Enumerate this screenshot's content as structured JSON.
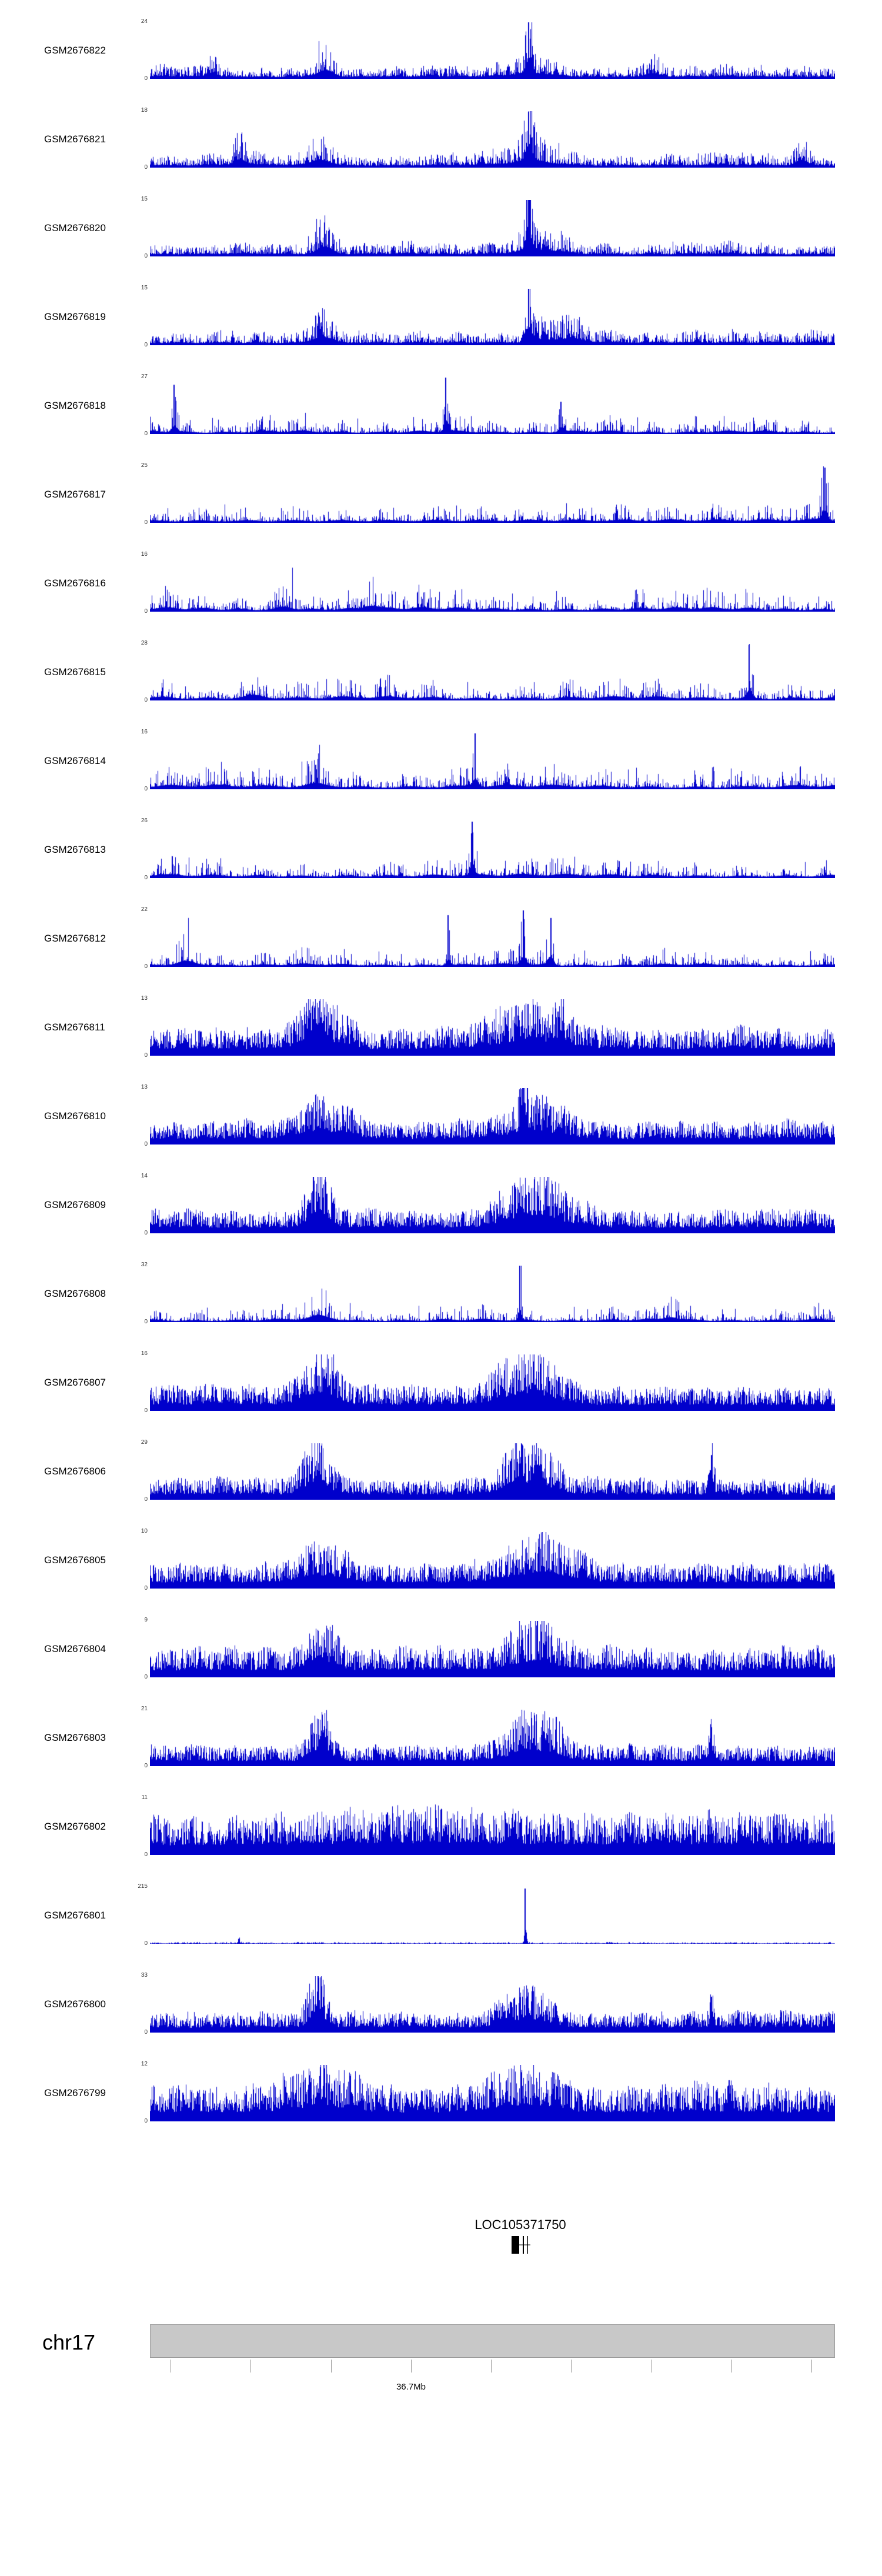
{
  "page": {
    "background": "#ffffff"
  },
  "chart_data": {
    "type": "area",
    "description": "Genome browser read-coverage tracks for 24 GEO samples over a region of chr17",
    "signal_color": "#0000cc",
    "y_bottom_label": "0",
    "x_axis": {
      "visible_tick_label": "36.7Mb"
    },
    "tracks": [
      {
        "label": "GSM2676822",
        "ymax": "24",
        "seed": 1,
        "style": "medium",
        "base": 0.18,
        "peaks": [
          {
            "p": 0.09,
            "w": 0.006,
            "h": 0.35
          },
          {
            "p": 0.255,
            "w": 0.012,
            "h": 0.5
          },
          {
            "p": 0.553,
            "w": 0.004,
            "h": 0.95
          },
          {
            "p": 0.56,
            "w": 0.03,
            "h": 0.3
          },
          {
            "p": 0.73,
            "w": 0.01,
            "h": 0.25
          }
        ]
      },
      {
        "label": "GSM2676821",
        "ymax": "18",
        "seed": 2,
        "style": "medium",
        "base": 0.2,
        "peaks": [
          {
            "p": 0.13,
            "w": 0.008,
            "h": 0.4
          },
          {
            "p": 0.25,
            "w": 0.012,
            "h": 0.5
          },
          {
            "p": 0.553,
            "w": 0.004,
            "h": 0.93
          },
          {
            "p": 0.56,
            "w": 0.03,
            "h": 0.32
          },
          {
            "p": 0.95,
            "w": 0.008,
            "h": 0.35
          }
        ]
      },
      {
        "label": "GSM2676820",
        "ymax": "15",
        "seed": 3,
        "style": "medium",
        "base": 0.2,
        "peaks": [
          {
            "p": 0.255,
            "w": 0.012,
            "h": 0.55
          },
          {
            "p": 0.553,
            "w": 0.004,
            "h": 0.95
          },
          {
            "p": 0.56,
            "w": 0.03,
            "h": 0.3
          }
        ]
      },
      {
        "label": "GSM2676819",
        "ymax": "15",
        "seed": 4,
        "style": "medium",
        "base": 0.2,
        "peaks": [
          {
            "p": 0.25,
            "w": 0.012,
            "h": 0.5
          },
          {
            "p": 0.553,
            "w": 0.004,
            "h": 0.95
          },
          {
            "p": 0.6,
            "w": 0.03,
            "h": 0.3
          }
        ]
      },
      {
        "label": "GSM2676818",
        "ymax": "27",
        "seed": 5,
        "style": "sparse",
        "base": 0.24,
        "peaks": [
          {
            "p": 0.035,
            "w": 0.004,
            "h": 0.8
          },
          {
            "p": 0.432,
            "w": 0.003,
            "h": 0.95
          },
          {
            "p": 0.6,
            "w": 0.004,
            "h": 0.5
          }
        ]
      },
      {
        "label": "GSM2676817",
        "ymax": "25",
        "seed": 6,
        "style": "sparse",
        "base": 0.26,
        "peaks": [
          {
            "p": 0.985,
            "w": 0.004,
            "h": 0.9
          }
        ]
      },
      {
        "label": "GSM2676816",
        "ymax": "16",
        "seed": 7,
        "style": "sparse",
        "base": 0.3,
        "peaks": [
          {
            "p": 0.2,
            "w": 0.01,
            "h": 0.45
          },
          {
            "p": 0.32,
            "w": 0.008,
            "h": 0.45
          }
        ]
      },
      {
        "label": "GSM2676815",
        "ymax": "28",
        "seed": 8,
        "style": "sparse",
        "base": 0.28,
        "peaks": [
          {
            "p": 0.15,
            "w": 0.02,
            "h": 0.35
          },
          {
            "p": 0.875,
            "w": 0.004,
            "h": 0.9
          }
        ]
      },
      {
        "label": "GSM2676814",
        "ymax": "16",
        "seed": 9,
        "style": "sparse",
        "base": 0.3,
        "peaks": [
          {
            "p": 0.25,
            "w": 0.02,
            "h": 0.35
          },
          {
            "p": 0.475,
            "w": 0.004,
            "h": 0.9
          }
        ]
      },
      {
        "label": "GSM2676813",
        "ymax": "26",
        "seed": 10,
        "style": "sparse",
        "base": 0.28,
        "peaks": [
          {
            "p": 0.47,
            "w": 0.003,
            "h": 0.95
          }
        ]
      },
      {
        "label": "GSM2676812",
        "ymax": "22",
        "seed": 11,
        "style": "sparse",
        "base": 0.22,
        "peaks": [
          {
            "p": 0.06,
            "w": 0.015,
            "h": 0.45
          },
          {
            "p": 0.435,
            "w": 0.003,
            "h": 0.85
          },
          {
            "p": 0.545,
            "w": 0.004,
            "h": 0.95
          },
          {
            "p": 0.585,
            "w": 0.004,
            "h": 0.8
          }
        ]
      },
      {
        "label": "GSM2676811",
        "ymax": "13",
        "seed": 12,
        "style": "dense",
        "base": 0.38,
        "peaks": [
          {
            "p": 0.25,
            "w": 0.03,
            "h": 0.45
          },
          {
            "p": 0.55,
            "w": 0.04,
            "h": 0.5
          },
          {
            "p": 0.6,
            "w": 0.01,
            "h": 0.3
          }
        ]
      },
      {
        "label": "GSM2676810",
        "ymax": "13",
        "seed": 13,
        "style": "dense",
        "base": 0.32,
        "peaks": [
          {
            "p": 0.25,
            "w": 0.03,
            "h": 0.4
          },
          {
            "p": 0.545,
            "w": 0.004,
            "h": 0.95
          },
          {
            "p": 0.56,
            "w": 0.035,
            "h": 0.45
          }
        ]
      },
      {
        "label": "GSM2676809",
        "ymax": "14",
        "seed": 14,
        "style": "dense",
        "base": 0.32,
        "peaks": [
          {
            "p": 0.245,
            "w": 0.015,
            "h": 0.75
          },
          {
            "p": 0.56,
            "w": 0.04,
            "h": 0.6
          }
        ]
      },
      {
        "label": "GSM2676808",
        "ymax": "32",
        "seed": 15,
        "style": "sparse",
        "base": 0.22,
        "peaks": [
          {
            "p": 0.25,
            "w": 0.02,
            "h": 0.3
          },
          {
            "p": 0.54,
            "w": 0.002,
            "h": 0.98
          },
          {
            "p": 0.76,
            "w": 0.008,
            "h": 0.35
          }
        ]
      },
      {
        "label": "GSM2676807",
        "ymax": "16",
        "seed": 16,
        "style": "dense",
        "base": 0.34,
        "peaks": [
          {
            "p": 0.25,
            "w": 0.02,
            "h": 0.55
          },
          {
            "p": 0.55,
            "w": 0.035,
            "h": 0.6
          }
        ]
      },
      {
        "label": "GSM2676806",
        "ymax": "29",
        "seed": 17,
        "style": "dense",
        "base": 0.3,
        "peaks": [
          {
            "p": 0.245,
            "w": 0.015,
            "h": 0.7
          },
          {
            "p": 0.55,
            "w": 0.03,
            "h": 0.6
          },
          {
            "p": 0.82,
            "w": 0.003,
            "h": 0.7
          }
        ]
      },
      {
        "label": "GSM2676805",
        "ymax": "10",
        "seed": 18,
        "style": "dense",
        "base": 0.36,
        "peaks": [
          {
            "p": 0.25,
            "w": 0.03,
            "h": 0.4
          },
          {
            "p": 0.57,
            "w": 0.04,
            "h": 0.55
          }
        ]
      },
      {
        "label": "GSM2676804",
        "ymax": "9",
        "seed": 19,
        "style": "dense",
        "base": 0.4,
        "peaks": [
          {
            "p": 0.25,
            "w": 0.02,
            "h": 0.5
          },
          {
            "p": 0.56,
            "w": 0.03,
            "h": 0.55
          }
        ]
      },
      {
        "label": "GSM2676803",
        "ymax": "21",
        "seed": 20,
        "style": "dense",
        "base": 0.3,
        "peaks": [
          {
            "p": 0.25,
            "w": 0.012,
            "h": 0.8
          },
          {
            "p": 0.56,
            "w": 0.03,
            "h": 0.55
          },
          {
            "p": 0.82,
            "w": 0.003,
            "h": 0.6
          }
        ]
      },
      {
        "label": "GSM2676802",
        "ymax": "11",
        "seed": 21,
        "style": "dense",
        "base": 0.52,
        "peaks": [
          {
            "p": 0.5,
            "w": 0.3,
            "h": 0.12
          }
        ]
      },
      {
        "label": "GSM2676801",
        "ymax": "215",
        "seed": 22,
        "style": "flat",
        "base": 0.025,
        "peaks": [
          {
            "p": 0.13,
            "w": 0.002,
            "h": 0.08
          },
          {
            "p": 0.548,
            "w": 0.0015,
            "h": 0.97
          }
        ]
      },
      {
        "label": "GSM2676800",
        "ymax": "33",
        "seed": 23,
        "style": "dense",
        "base": 0.28,
        "peaks": [
          {
            "p": 0.245,
            "w": 0.01,
            "h": 0.75
          },
          {
            "p": 0.55,
            "w": 0.03,
            "h": 0.5
          },
          {
            "p": 0.82,
            "w": 0.003,
            "h": 0.55
          }
        ]
      },
      {
        "label": "GSM2676799",
        "ymax": "12",
        "seed": 24,
        "style": "dense",
        "base": 0.52,
        "peaks": [
          {
            "p": 0.25,
            "w": 0.04,
            "h": 0.28
          },
          {
            "p": 0.55,
            "w": 0.04,
            "h": 0.3
          }
        ]
      }
    ]
  },
  "gene": {
    "name": "LOC105371750",
    "color": "#000000"
  },
  "chromosome": {
    "label": "chr17",
    "coordinate_label": "36.7Mb",
    "bar_color": "#c8c8c8",
    "ticks": [
      0.03,
      0.147,
      0.264,
      0.381,
      0.498,
      0.615,
      0.732,
      0.849,
      0.966
    ],
    "label_tick_index": 3
  }
}
